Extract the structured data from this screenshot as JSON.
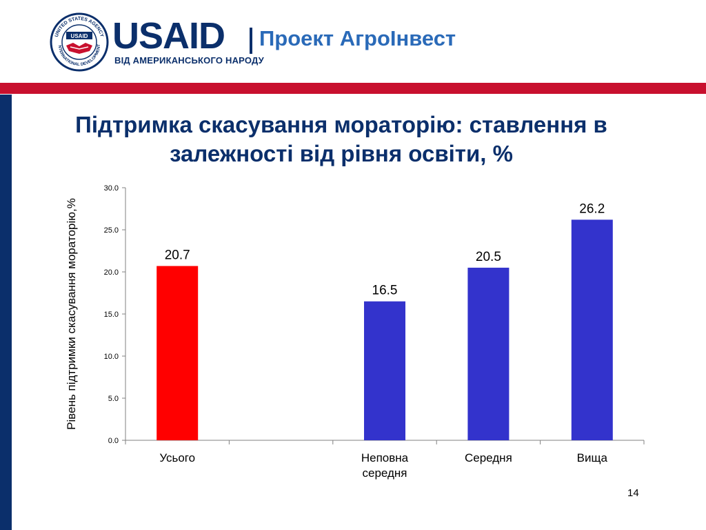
{
  "header": {
    "logo_name": "USAID",
    "logo_tagline": "ВІД АМЕРИКАНСЬКОГО НАРОДУ",
    "project_name": "Проект АгроІнвест",
    "seal_top_text": "UNITED STATES AGENCY",
    "seal_bottom_text": "INTERNATIONAL DEVELOPMENT",
    "seal_center_text": "USAID"
  },
  "colors": {
    "navy": "#0b2f6b",
    "red_strip": "#c8102e",
    "highlight_bar": "#ff0000",
    "bar": "#3333cc",
    "project_text": "#2a6ab8"
  },
  "slide": {
    "title": "Підтримка скасування мораторію: ставлення в залежності від рівня освіти, %",
    "page_number": "14"
  },
  "chart_data": {
    "type": "bar",
    "title": "Підтримка скасування мораторію: ставлення в залежності від рівня освіти, %",
    "xlabel": "",
    "ylabel": "Рівень підтримки скасування мораторію,%",
    "ylim": [
      0,
      30
    ],
    "yticks": [
      "0.0",
      "5.0",
      "10.0",
      "15.0",
      "20.0",
      "25.0",
      "30.0"
    ],
    "categories": [
      {
        "label_lines": [
          "Усього"
        ],
        "value": 20.7,
        "value_label": "20.7",
        "color": "#ff0000"
      },
      {
        "label_lines": [],
        "value": null,
        "value_label": "",
        "color": "#3333cc"
      },
      {
        "label_lines": [
          "Неповна",
          "середня"
        ],
        "value": 16.5,
        "value_label": "16.5",
        "color": "#3333cc"
      },
      {
        "label_lines": [
          "Середня"
        ],
        "value": 20.5,
        "value_label": "20.5",
        "color": "#3333cc"
      },
      {
        "label_lines": [
          "Вища"
        ],
        "value": 26.2,
        "value_label": "26.2",
        "color": "#3333cc"
      }
    ],
    "grid": false,
    "legend": "none"
  }
}
